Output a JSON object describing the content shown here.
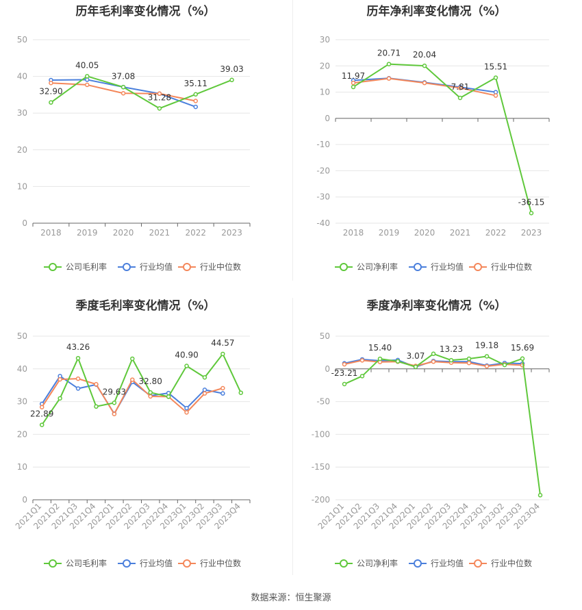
{
  "source": "数据来源：恒生聚源",
  "legend_labels": {
    "company_gross": "公司毛利率",
    "company_net": "公司净利率",
    "industry_avg": "行业均值",
    "industry_median": "行业中位数"
  },
  "colors": {
    "company": "#5fc83b",
    "industry_avg": "#4a7fdc",
    "industry_median": "#f4875a",
    "grid": "#e6e6e6",
    "axis_text": "#999999",
    "label_text": "#333333"
  },
  "chart_data": [
    {
      "type": "line",
      "title": "历年毛利率变化情况（%）",
      "categories": [
        "2018",
        "2019",
        "2020",
        "2021",
        "2022",
        "2023"
      ],
      "ylim": [
        0,
        50
      ],
      "yticks": [
        0,
        10,
        20,
        30,
        40,
        50
      ],
      "grid": true,
      "legend_position": "bottom",
      "series": [
        {
          "name": "公司毛利率",
          "values": [
            32.9,
            40.05,
            37.08,
            31.28,
            35.11,
            39.03
          ]
        },
        {
          "name": "行业均值",
          "values": [
            39.0,
            39.1,
            37.1,
            35.3,
            31.7,
            null
          ]
        },
        {
          "name": "行业中位数",
          "values": [
            38.2,
            37.7,
            35.4,
            35.3,
            33.3,
            null
          ]
        }
      ],
      "data_labels": [
        "32.90",
        "40.05",
        "37.08",
        "31.28",
        "35.11",
        "39.03"
      ]
    },
    {
      "type": "line",
      "title": "历年净利率变化情况（%）",
      "categories": [
        "2018",
        "2019",
        "2020",
        "2021",
        "2022",
        "2023"
      ],
      "ylim": [
        -40,
        30
      ],
      "yticks": [
        -40,
        -30,
        -20,
        -10,
        0,
        10,
        20,
        30
      ],
      "grid": true,
      "legend_position": "bottom",
      "series": [
        {
          "name": "公司净利率",
          "values": [
            11.97,
            20.71,
            20.04,
            7.81,
            15.51,
            -36.15
          ]
        },
        {
          "name": "行业均值",
          "values": [
            14.5,
            15.3,
            13.7,
            11.9,
            10.0,
            null
          ]
        },
        {
          "name": "行业中位数",
          "values": [
            13.5,
            15.2,
            13.5,
            11.6,
            8.7,
            null
          ]
        }
      ],
      "data_labels": [
        "11.97",
        "20.71",
        "20.04",
        "7.81",
        "15.51",
        "-36.15"
      ]
    },
    {
      "type": "line",
      "title": "季度毛利率变化情况（%）",
      "categories": [
        "2021Q1",
        "2021Q2",
        "2021Q3",
        "2021Q4",
        "2022Q1",
        "2022Q2",
        "2022Q3",
        "2022Q4",
        "2023Q1",
        "2023Q2",
        "2023Q3",
        "2023Q4"
      ],
      "ylim": [
        0,
        50
      ],
      "yticks": [
        0,
        10,
        20,
        30,
        40,
        50
      ],
      "grid": true,
      "legend_position": "bottom",
      "series": [
        {
          "name": "公司毛利率",
          "values": [
            22.89,
            31.0,
            43.26,
            28.5,
            29.63,
            43.1,
            32.8,
            31.5,
            40.9,
            37.4,
            44.57,
            32.7
          ]
        },
        {
          "name": "行业均值",
          "values": [
            29.3,
            37.8,
            34.0,
            35.2,
            26.3,
            36.0,
            31.8,
            32.6,
            28.0,
            33.6,
            32.5,
            null
          ]
        },
        {
          "name": "行业中位数",
          "values": [
            28.3,
            36.8,
            37.0,
            35.3,
            26.2,
            36.7,
            31.6,
            31.5,
            26.7,
            32.5,
            34.1,
            null
          ]
        }
      ],
      "data_labels": [
        "22.89",
        "",
        "43.26",
        "",
        "29.63",
        "",
        "32.80",
        "",
        "40.90",
        "",
        "44.57",
        ""
      ]
    },
    {
      "type": "line",
      "title": "季度净利率变化情况（%）",
      "categories": [
        "2021Q1",
        "2021Q2",
        "2021Q3",
        "2021Q4",
        "2022Q1",
        "2022Q2",
        "2022Q3",
        "2022Q4",
        "2023Q1",
        "2023Q2",
        "2023Q3",
        "2023Q4"
      ],
      "ylim": [
        -200,
        50
      ],
      "yticks": [
        -200,
        -150,
        -100,
        -50,
        0,
        50
      ],
      "grid": true,
      "legend_position": "bottom",
      "series": [
        {
          "name": "公司净利率",
          "values": [
            -23.21,
            -11.0,
            15.4,
            11.5,
            3.07,
            23.0,
            13.23,
            15.5,
            19.18,
            6.0,
            15.69,
            -193.0
          ]
        },
        {
          "name": "行业均值",
          "values": [
            8.5,
            14.5,
            12.5,
            13.5,
            3.0,
            12.0,
            11.0,
            11.0,
            5.0,
            9.0,
            8.0,
            null
          ]
        },
        {
          "name": "行业中位数",
          "values": [
            7.0,
            13.0,
            10.5,
            11.0,
            4.5,
            11.0,
            9.5,
            9.0,
            4.0,
            7.0,
            5.5,
            null
          ]
        }
      ],
      "data_labels": [
        "-23.21",
        "",
        "15.40",
        "",
        "3.07",
        "",
        "13.23",
        "",
        "19.18",
        "",
        "15.69",
        ""
      ]
    }
  ]
}
